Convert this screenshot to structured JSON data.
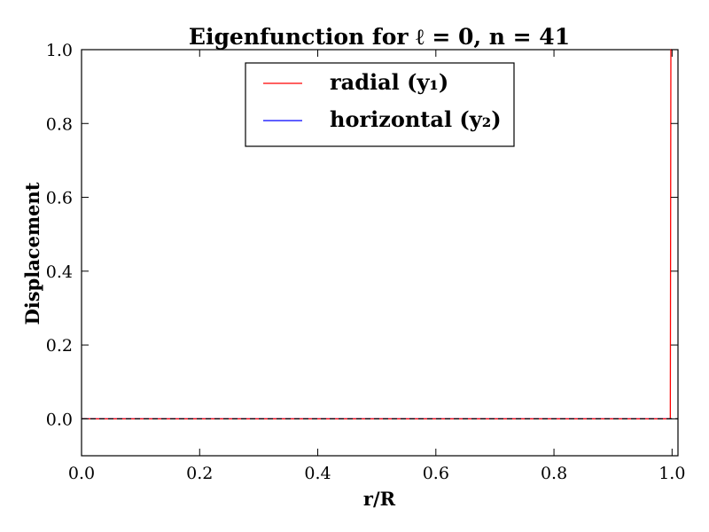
{
  "chart_data": {
    "type": "line",
    "title": "Eigenfunction for ℓ = 0, n = 41",
    "xlabel": "r/R",
    "ylabel": "Displacement",
    "xlim": [
      0.0,
      1.01
    ],
    "ylim": [
      -0.1,
      1.0
    ],
    "xticks": [
      0.0,
      0.2,
      0.4,
      0.6,
      0.8,
      1.0
    ],
    "xtick_labels": [
      "0.0",
      "0.2",
      "0.4",
      "0.6",
      "0.8",
      "1.0"
    ],
    "yticks": [
      0.0,
      0.2,
      0.4,
      0.6,
      0.8,
      1.0
    ],
    "ytick_labels": [
      "0.0",
      "0.2",
      "0.4",
      "0.6",
      "0.8",
      "1.0"
    ],
    "grid": false,
    "legend_position": "upper-center",
    "series": [
      {
        "name": "radial (y₁)",
        "color": "#ff0000",
        "x": [
          0.0,
          0.2,
          0.4,
          0.6,
          0.8,
          0.99,
          0.997,
          0.998,
          1.0
        ],
        "y": [
          0.0,
          0.0,
          0.0,
          0.0,
          0.0,
          0.0,
          0.0,
          1.0,
          1.0
        ]
      },
      {
        "name": "horizontal (y₂)",
        "color": "#0000ff",
        "x": [
          0.0,
          0.2,
          0.4,
          0.6,
          0.8,
          1.0
        ],
        "y": [
          0.0,
          0.0,
          0.0,
          0.0,
          0.0,
          0.0
        ]
      }
    ]
  }
}
